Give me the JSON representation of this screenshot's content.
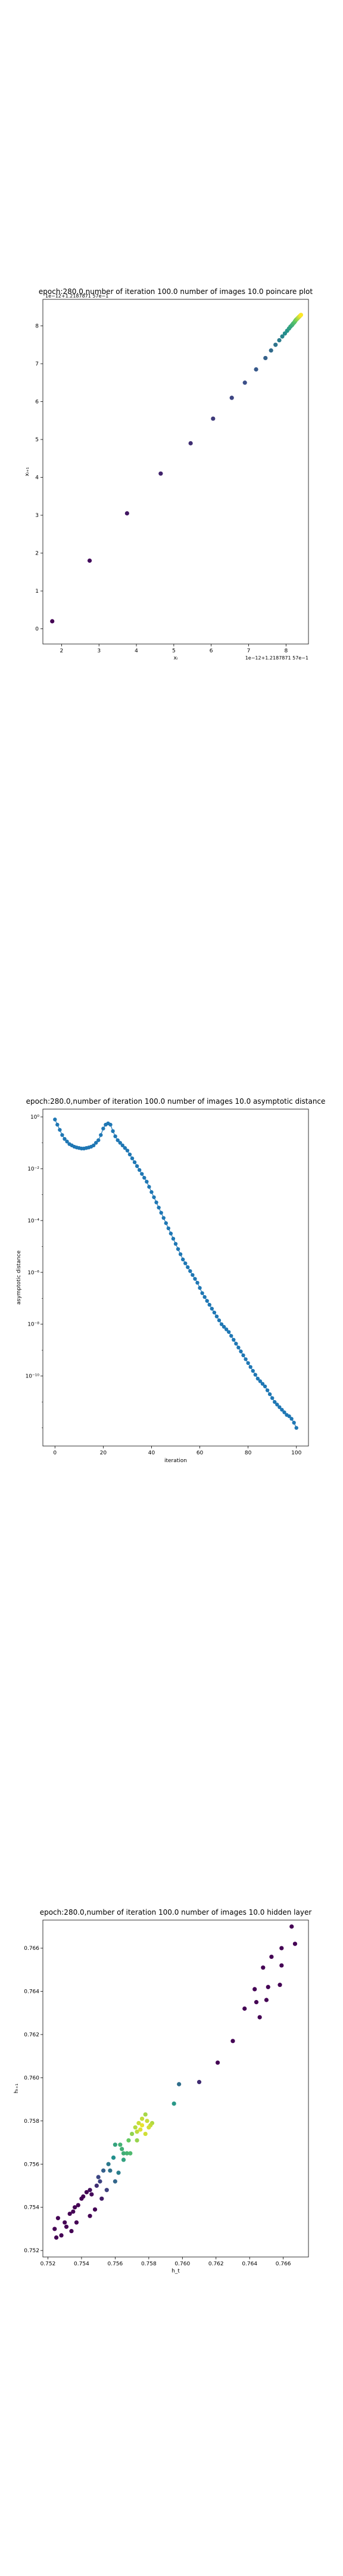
{
  "chart_data": [
    {
      "type": "scatter",
      "title": "epoch:280.0,number of iteration 100.0 number of images 10.0 poincare plot",
      "xlabel": "xᵢ",
      "ylabel": "xᵢ₊₁",
      "offset_text_x": "1e−12+1.2187871 57e−1",
      "offset_text_y": "1e−12+1.2187871 57e−1",
      "xlim": [
        1.5,
        8.6
      ],
      "ylim": [
        -0.4,
        8.7
      ],
      "xticks": [
        "2",
        "3",
        "4",
        "5",
        "6",
        "7",
        "8"
      ],
      "yticks": [
        "0",
        "1",
        "2",
        "3",
        "4",
        "5",
        "6",
        "7",
        "8"
      ],
      "grid": false,
      "colormap": "viridis",
      "points": [
        [
          1.75,
          0.2
        ],
        [
          2.75,
          1.8
        ],
        [
          3.75,
          3.05
        ],
        [
          4.65,
          4.1
        ],
        [
          5.45,
          4.9
        ],
        [
          6.05,
          5.55
        ],
        [
          6.55,
          6.1
        ],
        [
          6.9,
          6.5
        ],
        [
          7.2,
          6.85
        ],
        [
          7.45,
          7.15
        ],
        [
          7.6,
          7.35
        ],
        [
          7.72,
          7.5
        ],
        [
          7.82,
          7.62
        ],
        [
          7.9,
          7.72
        ],
        [
          7.97,
          7.8
        ],
        [
          8.03,
          7.87
        ],
        [
          8.08,
          7.93
        ],
        [
          8.12,
          7.98
        ],
        [
          8.16,
          8.02
        ],
        [
          8.19,
          8.06
        ],
        [
          8.22,
          8.09
        ],
        [
          8.24,
          8.12
        ],
        [
          8.26,
          8.15
        ],
        [
          8.28,
          8.17
        ],
        [
          8.3,
          8.19
        ],
        [
          8.32,
          8.21
        ],
        [
          8.34,
          8.23
        ],
        [
          8.36,
          8.25
        ],
        [
          8.38,
          8.27
        ],
        [
          8.4,
          8.29
        ]
      ]
    },
    {
      "type": "line",
      "title": "epoch:280.0,number of iteration 100.0  number of images 10.0 asymptotic distance",
      "xlabel": "iteration",
      "ylabel": "asymptotic distance",
      "xlim": [
        -5,
        105
      ],
      "ylim_log10": [
        -12.7,
        0.3
      ],
      "xticks": [
        "0",
        "20",
        "40",
        "60",
        "80",
        "100"
      ],
      "yticks": [
        "10⁻¹⁰",
        "10⁻⁸",
        "10⁻⁶",
        "10⁻⁴",
        "10⁻²",
        "10⁰"
      ],
      "ytick_values_log10": [
        -10,
        -8,
        -6,
        -4,
        -2,
        0
      ],
      "grid": false,
      "marker": "circle",
      "color": "#1f77b4",
      "log10_values": [
        -0.1,
        -0.3,
        -0.5,
        -0.7,
        -0.85,
        -0.95,
        -1.05,
        -1.1,
        -1.15,
        -1.18,
        -1.2,
        -1.22,
        -1.22,
        -1.2,
        -1.18,
        -1.15,
        -1.1,
        -1.0,
        -0.9,
        -0.7,
        -0.45,
        -0.3,
        -0.25,
        -0.3,
        -0.55,
        -0.75,
        -0.9,
        -1.0,
        -1.1,
        -1.2,
        -1.3,
        -1.45,
        -1.6,
        -1.75,
        -1.9,
        -2.05,
        -2.2,
        -2.35,
        -2.5,
        -2.7,
        -2.9,
        -3.1,
        -3.3,
        -3.5,
        -3.7,
        -3.9,
        -4.1,
        -4.3,
        -4.5,
        -4.7,
        -4.9,
        -5.1,
        -5.3,
        -5.5,
        -5.65,
        -5.8,
        -5.95,
        -6.1,
        -6.25,
        -6.4,
        -6.6,
        -6.8,
        -6.95,
        -7.1,
        -7.25,
        -7.4,
        -7.55,
        -7.7,
        -7.85,
        -8.0,
        -8.1,
        -8.2,
        -8.3,
        -8.45,
        -8.6,
        -8.75,
        -8.9,
        -9.05,
        -9.2,
        -9.35,
        -9.5,
        -9.65,
        -9.8,
        -9.95,
        -10.1,
        -10.2,
        -10.3,
        -10.4,
        -10.55,
        -10.7,
        -10.85,
        -11.0,
        -11.1,
        -11.2,
        -11.3,
        -11.4,
        -11.5,
        -11.55,
        -11.65,
        -11.8,
        -12.0
      ]
    },
    {
      "type": "scatter",
      "title": "epoch:280.0,number of iteration 100.0  number of images 10.0 hidden layer",
      "xlabel": "h_t",
      "ylabel": "hₜ₊₁",
      "xlim": [
        0.7517,
        0.7675
      ],
      "ylim": [
        0.7517,
        0.7673
      ],
      "xticks": [
        "0.752",
        "0.754",
        "0.756",
        "0.758",
        "0.760",
        "0.762",
        "0.764",
        "0.766"
      ],
      "xtick_values": [
        0.752,
        0.754,
        0.756,
        0.758,
        0.76,
        0.762,
        0.764,
        0.766
      ],
      "yticks": [
        "0.752",
        "0.754",
        "0.756",
        "0.758",
        "0.760",
        "0.762",
        "0.764",
        "0.766"
      ],
      "ytick_values": [
        0.752,
        0.754,
        0.756,
        0.758,
        0.76,
        0.762,
        0.764,
        0.766
      ],
      "grid": false,
      "colormap": "viridis",
      "points": [
        [
          0.7665,
          0.767
        ],
        [
          0.7667,
          0.7662
        ],
        [
          0.7659,
          0.766
        ],
        [
          0.7653,
          0.7656
        ],
        [
          0.7659,
          0.7652
        ],
        [
          0.7648,
          0.7651
        ],
        [
          0.7658,
          0.7643
        ],
        [
          0.7651,
          0.7642
        ],
        [
          0.7643,
          0.7641
        ],
        [
          0.7644,
          0.7635
        ],
        [
          0.765,
          0.7636
        ],
        [
          0.7637,
          0.7632
        ],
        [
          0.7646,
          0.7628
        ],
        [
          0.763,
          0.7617
        ],
        [
          0.7621,
          0.7607
        ],
        [
          0.761,
          0.7598
        ],
        [
          0.7598,
          0.7597
        ],
        [
          0.7595,
          0.7588
        ],
        [
          0.7582,
          0.7579
        ],
        [
          0.7573,
          0.7571
        ],
        [
          0.7563,
          0.7569
        ],
        [
          0.7565,
          0.7565
        ],
        [
          0.7579,
          0.758
        ],
        [
          0.7578,
          0.7583
        ],
        [
          0.7581,
          0.7578
        ],
        [
          0.7575,
          0.7576
        ],
        [
          0.7576,
          0.7578
        ],
        [
          0.7578,
          0.7574
        ],
        [
          0.758,
          0.7577
        ],
        [
          0.7576,
          0.7581
        ],
        [
          0.7574,
          0.7579
        ],
        [
          0.7572,
          0.7577
        ],
        [
          0.7573,
          0.7575
        ],
        [
          0.757,
          0.7574
        ],
        [
          0.7568,
          0.7571
        ],
        [
          0.7569,
          0.7565
        ],
        [
          0.7567,
          0.7565
        ],
        [
          0.7564,
          0.7567
        ],
        [
          0.7565,
          0.7562
        ],
        [
          0.756,
          0.7569
        ],
        [
          0.7559,
          0.7563
        ],
        [
          0.7556,
          0.756
        ],
        [
          0.7557,
          0.7557
        ],
        [
          0.7553,
          0.7557
        ],
        [
          0.755,
          0.7554
        ],
        [
          0.7549,
          0.755
        ],
        [
          0.7546,
          0.7546
        ],
        [
          0.7543,
          0.7547
        ],
        [
          0.754,
          0.7544
        ],
        [
          0.7538,
          0.7541
        ],
        [
          0.7536,
          0.754
        ],
        [
          0.7533,
          0.7537
        ],
        [
          0.753,
          0.7533
        ],
        [
          0.7526,
          0.7535
        ],
        [
          0.7524,
          0.753
        ],
        [
          0.7525,
          0.7526
        ],
        [
          0.7528,
          0.7527
        ],
        [
          0.7531,
          0.7531
        ],
        [
          0.7534,
          0.7529
        ],
        [
          0.7537,
          0.7533
        ],
        [
          0.7545,
          0.7536
        ],
        [
          0.7548,
          0.7539
        ],
        [
          0.7552,
          0.7544
        ],
        [
          0.7555,
          0.7548
        ],
        [
          0.756,
          0.7552
        ],
        [
          0.7562,
          0.7556
        ],
        [
          0.7551,
          0.7552
        ],
        [
          0.7545,
          0.7548
        ],
        [
          0.7541,
          0.7545
        ],
        [
          0.7535,
          0.7538
        ]
      ]
    }
  ]
}
